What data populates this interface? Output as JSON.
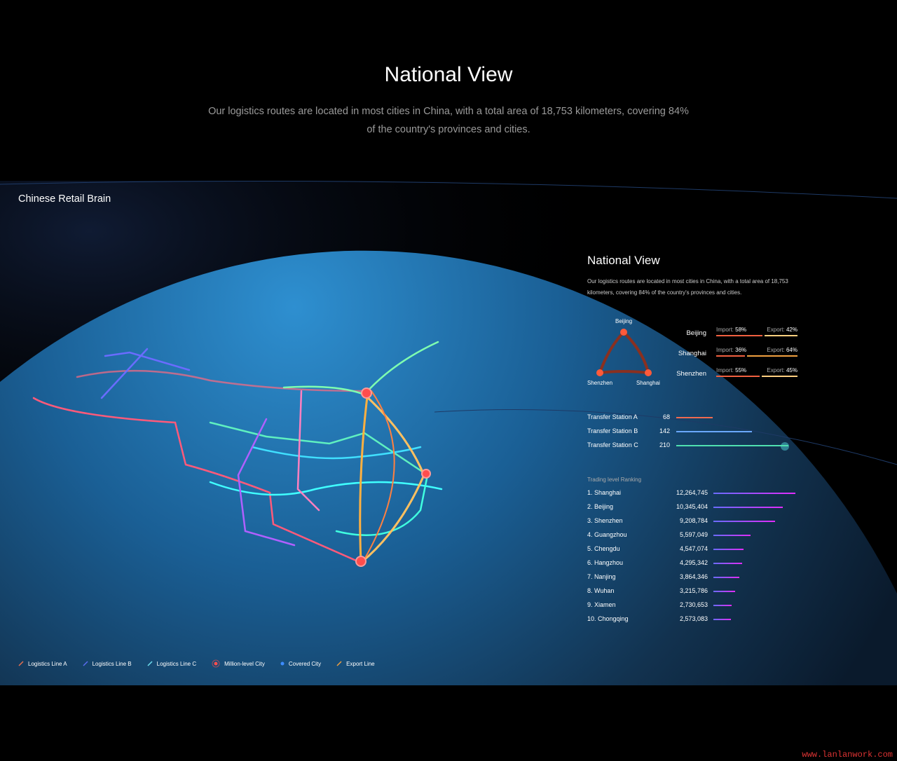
{
  "hero": {
    "title": "National View",
    "subtitle": "Our logistics routes are located in most cities in China, with a total area of 18,753 kilometers, covering 84% of the country's provinces and cities."
  },
  "stage": {
    "label": "Chinese Retail Brain"
  },
  "panel": {
    "title": "National View",
    "description": "Our logistics routes are located in most cities in China, with a total area of 18,753 kilometers, covering 84% of the country's provinces and cities.",
    "triangle": [
      "Beijing",
      "Shenzhen",
      "Shanghai"
    ],
    "cities": [
      {
        "name": "Beijing",
        "import_label": "Import:",
        "import": "58%",
        "export_label": "Export:",
        "export": "42%",
        "import_pct": 58
      },
      {
        "name": "Shanghai",
        "import_label": "Import:",
        "import": "36%",
        "export_label": "Export:",
        "export": "64%",
        "import_pct": 36
      },
      {
        "name": "Shenzhen",
        "import_label": "Import:",
        "import": "55%",
        "export_label": "Export:",
        "export": "45%",
        "import_pct": 55
      }
    ],
    "stations": [
      {
        "name": "Transfer Station A",
        "value": "68",
        "color": "#f06a50"
      },
      {
        "name": "Transfer Station B",
        "value": "142",
        "color": "#6aa8ff"
      },
      {
        "name": "Transfer Station C",
        "value": "210",
        "color": "#4fe0b0"
      }
    ],
    "ranking_title": "Trading level Ranking",
    "ranking": [
      {
        "name": "1. Shanghai",
        "value": "12,264,745"
      },
      {
        "name": "2. Beijing",
        "value": "10,345,404"
      },
      {
        "name": "3. Shenzhen",
        "value": "9,208,784"
      },
      {
        "name": "4. Guangzhou",
        "value": "5,597,049"
      },
      {
        "name": "5. Chengdu",
        "value": "4,547,074"
      },
      {
        "name": "6. Hangzhou",
        "value": "4,295,342"
      },
      {
        "name": "7. Nanjing",
        "value": "3,864,346"
      },
      {
        "name": "8. Wuhan",
        "value": "3,215,786"
      },
      {
        "name": "9. Xiamen",
        "value": "2,730,653"
      },
      {
        "name": "10. Chongqing",
        "value": "2,573,083"
      }
    ]
  },
  "legend": [
    {
      "label": "Logistics Line A",
      "icon": "line-icon",
      "color": "#e8704f"
    },
    {
      "label": "Logistics Line B",
      "icon": "line-icon",
      "color": "#5a6cf0"
    },
    {
      "label": "Logistics Line C",
      "icon": "line-icon",
      "color": "#6fe0f0"
    },
    {
      "label": "Million-level City",
      "icon": "ring-dot-icon",
      "color": "#ff4d4d"
    },
    {
      "label": "Covered City",
      "icon": "dot-icon",
      "color": "#3d8cff"
    },
    {
      "label": "Export Line",
      "icon": "line-icon",
      "color": "#f0a040"
    }
  ],
  "watermark": "www.lanlanwork.com"
}
